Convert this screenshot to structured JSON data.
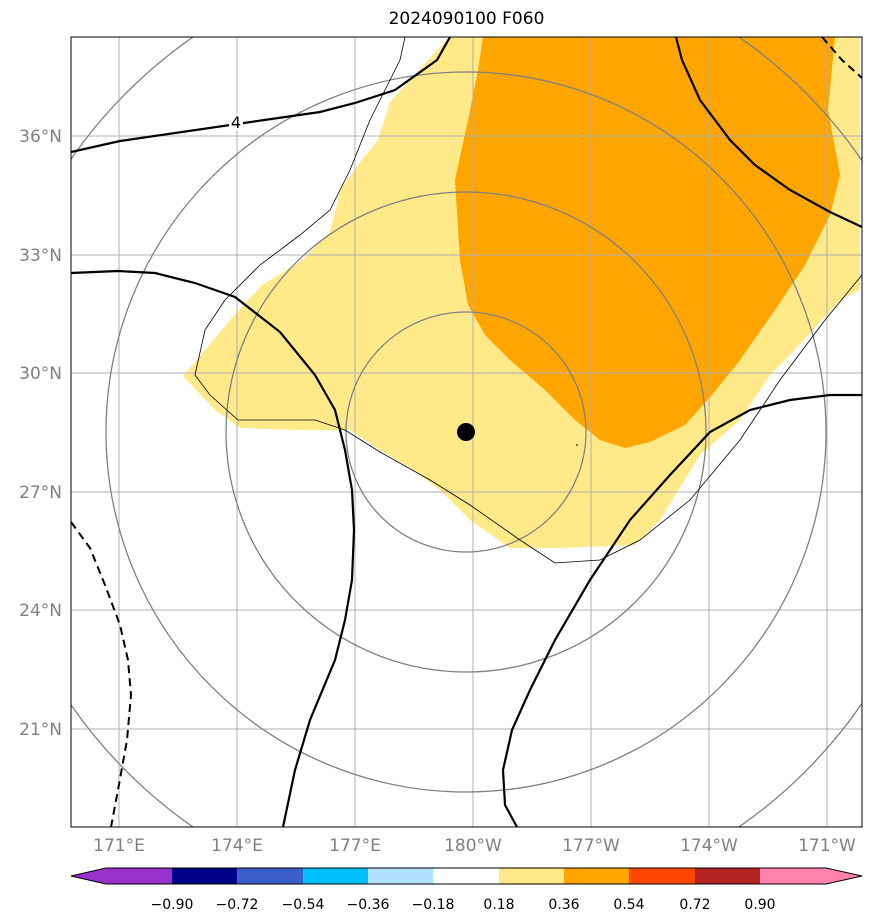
{
  "title": "2024090100 F060",
  "lon_ticks": [
    "171°E",
    "174°E",
    "177°E",
    "180°W",
    "177°W",
    "174°W",
    "171°W"
  ],
  "lat_ticks": [
    "36°N",
    "33°N",
    "30°N",
    "27°N",
    "24°N",
    "21°N"
  ],
  "contour_label": "4",
  "colorbar": {
    "ticks": [
      "−0.90",
      "−0.72",
      "−0.54",
      "−0.36",
      "−0.18",
      "0.18",
      "0.36",
      "0.54",
      "0.72",
      "0.90"
    ],
    "colors": [
      "#9932cc",
      "#00008b",
      "#3a5fcd",
      "#00bfff",
      "#b0e2ff",
      "#ffffff",
      "#ffe989",
      "#ffa500",
      "#ff4500",
      "#b22222",
      "#ff82ab"
    ]
  },
  "colors": {
    "shade_low": "#ffe989",
    "shade_high": "#ffa500",
    "range_rings": "#808080",
    "grid": "#b0b0b0",
    "storm_center": "#000000"
  }
}
